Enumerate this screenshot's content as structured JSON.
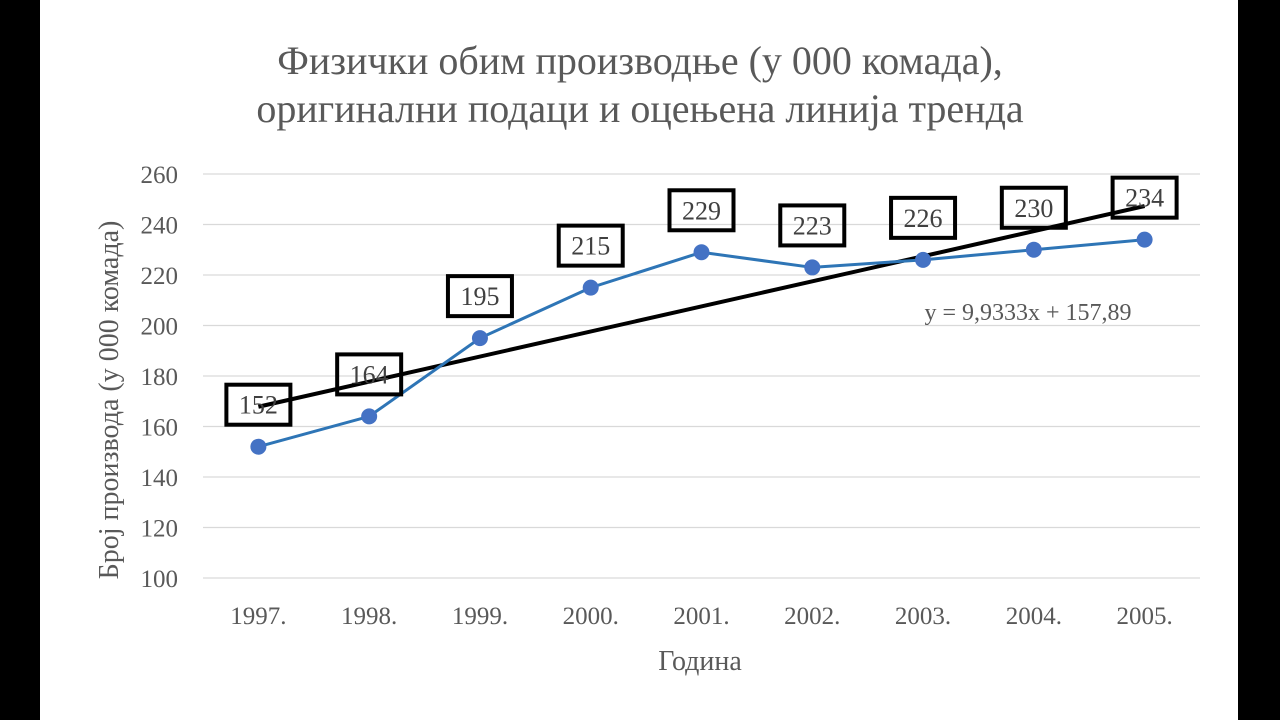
{
  "chart_data": {
    "type": "line",
    "title_lines": [
      "Физички обим производње (у 000 комада),",
      "оригинални подаци и оцењена линија тренда"
    ],
    "xlabel": "Година",
    "ylabel": "Број производа (у 000 комада)",
    "categories": [
      "1997.",
      "1998.",
      "1999.",
      "2000.",
      "2001.",
      "2002.",
      "2003.",
      "2004.",
      "2005."
    ],
    "series": [
      {
        "values": [
          152,
          164,
          195,
          215,
          229,
          223,
          226,
          230,
          234
        ],
        "color": "#2E75B6",
        "marker_color": "#4472C4"
      }
    ],
    "data_labels": [
      "152",
      "164",
      "195",
      "215",
      "229",
      "223",
      "226",
      "230",
      "234"
    ],
    "trendline": {
      "slope": 9.9333,
      "intercept": 157.89,
      "equation": "y = 9,9333x + 157,89",
      "color": "#000000"
    },
    "ylim": [
      100,
      260
    ],
    "yticks": [
      100,
      120,
      140,
      160,
      180,
      200,
      220,
      240,
      260
    ],
    "grid": true,
    "legend": "none"
  }
}
